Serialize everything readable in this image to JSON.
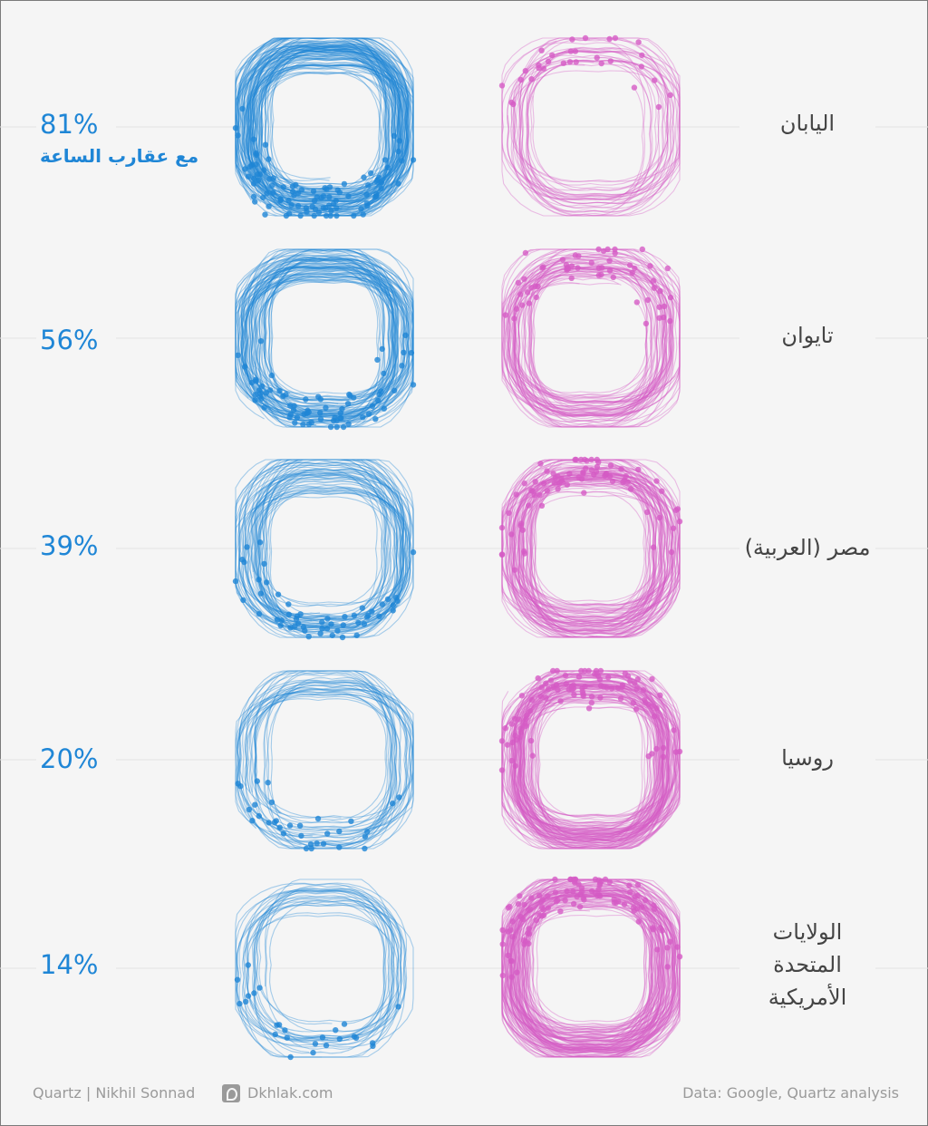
{
  "chart_data": {
    "type": "scatter",
    "description_series": [
      {
        "name": "clockwise",
        "color": "#1f86d6"
      },
      {
        "name": "counterclockwise",
        "color": "#d65cc6"
      }
    ],
    "legend_label": "مع عقارب الساعة",
    "rows": [
      {
        "country": "اليابان",
        "clockwise_pct": "81%",
        "clockwise_value": 81
      },
      {
        "country": "تايوان",
        "clockwise_pct": "56%",
        "clockwise_value": 56
      },
      {
        "country": "مصر (العربية)",
        "clockwise_pct": "39%",
        "clockwise_value": 39
      },
      {
        "country": "روسيا",
        "clockwise_pct": "20%",
        "clockwise_value": 20
      },
      {
        "country": "الولايات المتحدة الأمريكية",
        "clockwise_pct": "14%",
        "clockwise_value": 14
      }
    ]
  },
  "footer": {
    "credit": "Quartz | Nikhil Sonnad",
    "site": "Dkhlak.com",
    "source": "Data: Google, Quartz analysis"
  },
  "colors": {
    "clockwise": "#1f86d6",
    "counterclockwise": "#d65cc6",
    "background": "#f5f5f5"
  }
}
